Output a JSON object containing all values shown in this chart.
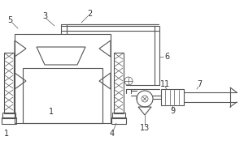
{
  "bg_color": "#ffffff",
  "line_color": "#555555",
  "label_color": "#333333",
  "fig_width": 3.0,
  "fig_height": 2.0,
  "dpi": 100
}
